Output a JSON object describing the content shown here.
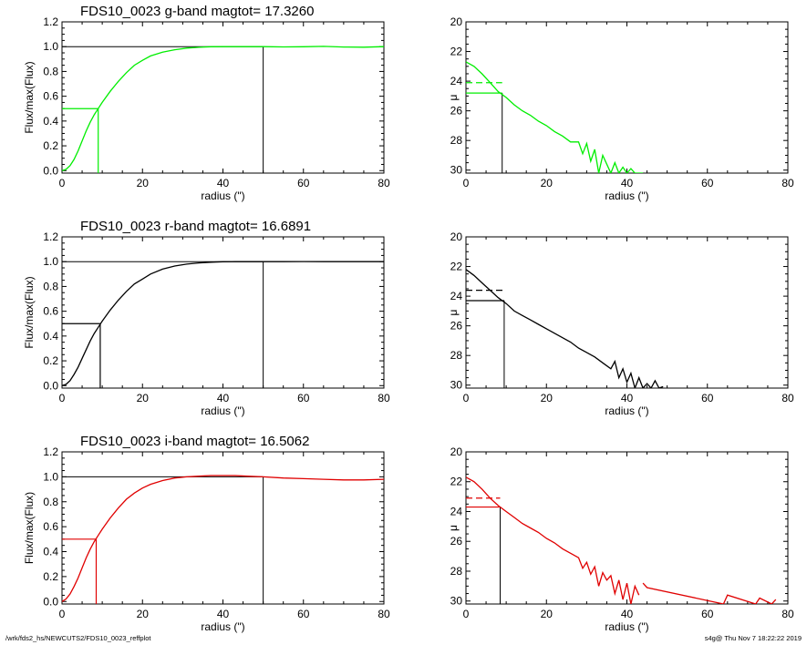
{
  "footer": {
    "path": "/wrk/fds2_hs/NEWCUTS2/FDS10_0023_reffplot",
    "stamp": "s4g@  Thu Nov  7 18:22:22 2019"
  },
  "colors": {
    "g": "#00ee00",
    "r": "#000000",
    "i": "#e00000",
    "axis": "#000000"
  },
  "chart_data": [
    {
      "type": "line",
      "band": "g",
      "panel": "growth-curve",
      "title": "FDS10_0023 g-band  magtot=      17.3260",
      "xlabel": "radius (\")",
      "ylabel": "Flux/max(Flux)",
      "xlim": [
        0,
        80
      ],
      "ylim": [
        -0.02,
        1.2
      ],
      "xticks": [
        "0",
        "20",
        "40",
        "60",
        "80"
      ],
      "yticks": [
        "0.0",
        "0.2",
        "0.4",
        "0.6",
        "0.8",
        "1.0",
        "1.2"
      ],
      "series": [
        {
          "color": "#00ee00",
          "x": [
            0,
            1,
            2,
            3,
            4,
            5,
            6,
            7,
            8,
            9,
            10,
            12,
            14,
            16,
            18,
            20,
            22,
            25,
            28,
            31,
            34,
            37,
            40,
            43,
            46,
            50,
            55,
            60,
            65,
            70,
            75,
            80
          ],
          "y": [
            0,
            0.01,
            0.04,
            0.09,
            0.16,
            0.24,
            0.32,
            0.39,
            0.45,
            0.5,
            0.55,
            0.64,
            0.72,
            0.79,
            0.85,
            0.89,
            0.925,
            0.955,
            0.975,
            0.988,
            0.995,
            0.999,
            1.0,
            1.0,
            1.0,
            1.0,
            0.998,
            0.999,
            1.002,
            0.997,
            0.996,
            1.0
          ]
        }
      ],
      "half_light_radius": 9.0,
      "total_radius": 50
    },
    {
      "type": "line",
      "band": "g",
      "panel": "surface-brightness-profile",
      "title": "",
      "xlabel": "radius (\")",
      "ylabel": "μ",
      "xlim": [
        0,
        80
      ],
      "ylim": [
        30.2,
        20
      ],
      "xticks": [
        "0",
        "20",
        "40",
        "60",
        "80"
      ],
      "yticks": [
        "20",
        "22",
        "24",
        "26",
        "28",
        "30"
      ],
      "series": [
        {
          "color": "#00ee00",
          "x": [
            0,
            2,
            4,
            6,
            8,
            10,
            12,
            14,
            16,
            18,
            20,
            22,
            24,
            26,
            28,
            29,
            30,
            31,
            32,
            33,
            34,
            35,
            36,
            37,
            38,
            39,
            40,
            41,
            42,
            44
          ],
          "y": [
            22.7,
            23.0,
            23.5,
            24.1,
            24.7,
            25.1,
            25.6,
            26.0,
            26.3,
            26.7,
            27.0,
            27.4,
            27.7,
            28.1,
            28.1,
            28.9,
            28.2,
            29.4,
            28.6,
            30.2,
            29.0,
            29.6,
            30.2,
            29.5,
            30.2,
            29.8,
            30.2,
            29.9,
            30.2,
            30.2
          ]
        }
      ],
      "mu_eff": 24.8,
      "mu_mean_eff": 24.1,
      "half_light_radius": 9.0
    },
    {
      "type": "line",
      "band": "r",
      "panel": "growth-curve",
      "title": "FDS10_0023 r-band  magtot=      16.6891",
      "xlabel": "radius (\")",
      "ylabel": "Flux/max(Flux)",
      "xlim": [
        0,
        80
      ],
      "ylim": [
        -0.02,
        1.2
      ],
      "xticks": [
        "0",
        "20",
        "40",
        "60",
        "80"
      ],
      "yticks": [
        "0.0",
        "0.2",
        "0.4",
        "0.6",
        "0.8",
        "1.0",
        "1.2"
      ],
      "series": [
        {
          "color": "#000000",
          "x": [
            0,
            1,
            2,
            3,
            4,
            5,
            6,
            7,
            8,
            9,
            10,
            12,
            14,
            16,
            18,
            20,
            22,
            25,
            28,
            31,
            34,
            37,
            40,
            43,
            46,
            50,
            55,
            60,
            65,
            70,
            75,
            80
          ],
          "y": [
            0,
            0.01,
            0.04,
            0.09,
            0.15,
            0.22,
            0.29,
            0.36,
            0.42,
            0.47,
            0.52,
            0.61,
            0.69,
            0.76,
            0.82,
            0.86,
            0.9,
            0.94,
            0.965,
            0.98,
            0.99,
            0.996,
            0.999,
            1.0,
            1.0,
            1.0,
            1.0,
            1.001,
            1.0,
            1.0,
            1.0,
            1.0
          ]
        }
      ],
      "half_light_radius": 9.5,
      "total_radius": 50
    },
    {
      "type": "line",
      "band": "r",
      "panel": "surface-brightness-profile",
      "title": "",
      "xlabel": "radius (\")",
      "ylabel": "μ",
      "xlim": [
        0,
        80
      ],
      "ylim": [
        30.2,
        20
      ],
      "xticks": [
        "0",
        "20",
        "40",
        "60",
        "80"
      ],
      "yticks": [
        "20",
        "22",
        "24",
        "26",
        "28",
        "30"
      ],
      "series": [
        {
          "color": "#000000",
          "x": [
            0,
            2,
            4,
            6,
            8,
            10,
            12,
            14,
            16,
            18,
            20,
            22,
            24,
            26,
            28,
            30,
            32,
            34,
            36,
            37,
            38,
            39,
            40,
            41,
            42,
            43,
            44,
            45,
            46,
            47,
            48,
            49
          ],
          "y": [
            22.2,
            22.6,
            23.1,
            23.6,
            24.1,
            24.5,
            25.0,
            25.3,
            25.6,
            25.9,
            26.2,
            26.5,
            26.8,
            27.1,
            27.5,
            27.8,
            28.1,
            28.5,
            28.9,
            28.4,
            29.5,
            28.9,
            29.8,
            29.2,
            30.2,
            29.5,
            30.2,
            29.9,
            30.2,
            29.7,
            30.2,
            30.1
          ]
        }
      ],
      "mu_eff": 24.3,
      "mu_mean_eff": 23.6,
      "half_light_radius": 9.5
    },
    {
      "type": "line",
      "band": "i",
      "panel": "growth-curve",
      "title": "FDS10_0023 i-band  magtot=      16.5062",
      "xlabel": "radius (\")",
      "ylabel": "Flux/max(Flux)",
      "xlim": [
        0,
        80
      ],
      "ylim": [
        -0.02,
        1.2
      ],
      "xticks": [
        "0",
        "20",
        "40",
        "60",
        "80"
      ],
      "yticks": [
        "0.0",
        "0.2",
        "0.4",
        "0.6",
        "0.8",
        "1.0",
        "1.2"
      ],
      "series": [
        {
          "color": "#e00000",
          "x": [
            0,
            1,
            2,
            3,
            4,
            5,
            6,
            7,
            8,
            9,
            10,
            12,
            14,
            16,
            18,
            20,
            22,
            25,
            28,
            31,
            34,
            37,
            40,
            43,
            46,
            50,
            55,
            60,
            65,
            70,
            75,
            80
          ],
          "y": [
            0,
            0.02,
            0.06,
            0.12,
            0.19,
            0.27,
            0.35,
            0.42,
            0.48,
            0.53,
            0.58,
            0.67,
            0.75,
            0.82,
            0.87,
            0.91,
            0.94,
            0.97,
            0.99,
            1.0,
            1.005,
            1.01,
            1.01,
            1.01,
            1.005,
            1.0,
            0.99,
            0.985,
            0.98,
            0.975,
            0.975,
            0.98
          ]
        }
      ],
      "half_light_radius": 8.5,
      "total_radius": 50
    },
    {
      "type": "line",
      "band": "i",
      "panel": "surface-brightness-profile",
      "title": "",
      "xlabel": "radius (\")",
      "ylabel": "μ",
      "xlim": [
        0,
        80
      ],
      "ylim": [
        30.2,
        20
      ],
      "xticks": [
        "0",
        "20",
        "40",
        "60",
        "80"
      ],
      "yticks": [
        "20",
        "22",
        "24",
        "26",
        "28",
        "30"
      ],
      "series": [
        {
          "color": "#e00000",
          "x": [
            0,
            2,
            4,
            6,
            8,
            10,
            12,
            14,
            16,
            18,
            20,
            22,
            24,
            26,
            28,
            29,
            30,
            31,
            32,
            33,
            34,
            35,
            36,
            37,
            38,
            39,
            40,
            41,
            42,
            43
          ],
          "y": [
            21.7,
            22.0,
            22.5,
            23.1,
            23.6,
            24.0,
            24.4,
            24.8,
            25.1,
            25.4,
            25.8,
            26.1,
            26.5,
            26.8,
            27.1,
            27.8,
            27.4,
            28.2,
            27.7,
            29.0,
            28.1,
            28.6,
            28.3,
            29.5,
            28.6,
            29.9,
            28.8,
            30.2,
            29.0,
            29.6
          ]
        },
        {
          "color": "#e00000",
          "x": [
            44,
            45,
            64,
            65,
            72,
            73,
            76,
            77
          ],
          "y": [
            28.8,
            29.1,
            30.2,
            29.6,
            30.2,
            29.8,
            30.2,
            29.9
          ]
        }
      ],
      "mu_eff": 23.7,
      "mu_mean_eff": 23.1,
      "half_light_radius": 8.5
    }
  ]
}
